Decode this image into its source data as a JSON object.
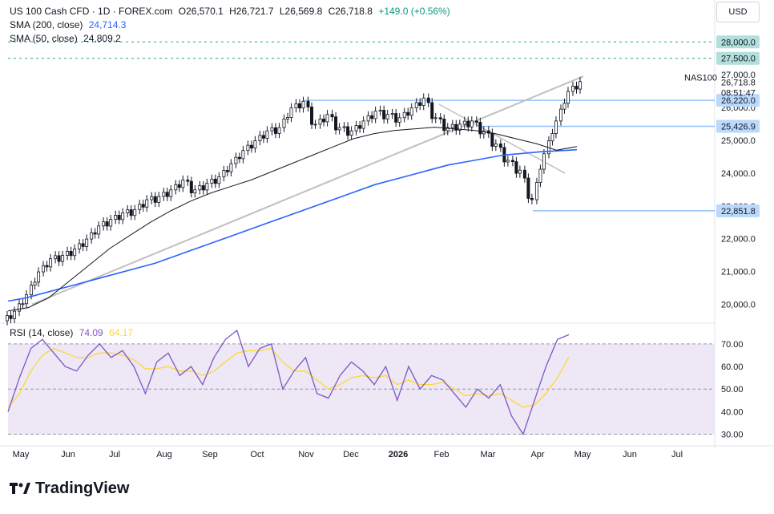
{
  "header": {
    "symbol": "US 100 Cash CFD · 1D · FOREX.com",
    "open": "O26,570.1",
    "high": "H26,721.7",
    "low": "L26,569.8",
    "close": "C26,718.8",
    "change": "+149.0 (+0.56%)",
    "sma200_label": "SMA (200, close)",
    "sma200_value": "24,714.3",
    "sma50_label": "SMA (50, close)",
    "sma50_value": "24,809.2",
    "currency": "USD"
  },
  "rsi_header": {
    "label": "RSI (14, close)",
    "value": "74.09",
    "ma_value": "64.17"
  },
  "logo_text": "TradingView",
  "colors": {
    "up": "#131722",
    "down": "#131722",
    "sma200": "#2962ff",
    "sma50": "#131722",
    "rsi": "#7e57c2",
    "rsi_ma": "#fdd835",
    "rsi_band": "#ede7f6",
    "level_line": "#90bff9",
    "level_label_bg": "#bbd9fb",
    "trendline": "#c0c0c0"
  },
  "chart_data": {
    "type": "candlestick",
    "price_axis": {
      "min": 19500,
      "max": 28300,
      "ticks": [
        "20,000.0",
        "21,000.0",
        "22,000.0",
        "23,000.0",
        "24,000.0",
        "25,000.0",
        "26,000.0",
        "27,000.0"
      ]
    },
    "x_axis_labels": [
      "May",
      "Jun",
      "Jul",
      "Aug",
      "Sep",
      "Oct",
      "Nov",
      "Dec",
      "2026",
      "Feb",
      "Mar",
      "Apr",
      "May",
      "Jun",
      "Jul"
    ],
    "last_price_label": "26,718.8",
    "countdown": "08:51:47",
    "symbol_tag": "NAS100",
    "levels": [
      {
        "label": "28,000.0",
        "price": 28000,
        "style": "dashed"
      },
      {
        "label": "27,500.0",
        "price": 27500,
        "style": "dashed"
      },
      {
        "label": "26,220.0",
        "price": 26220,
        "style": "solid"
      },
      {
        "label": "25,426.9",
        "price": 25426.9,
        "style": "solid"
      },
      {
        "label": "22,851.8",
        "price": 22851.8,
        "style": "solid"
      }
    ],
    "closes_weekly": [
      19700,
      20200,
      20900,
      21300,
      21400,
      21600,
      21900,
      22300,
      22500,
      22700,
      22800,
      23100,
      23200,
      23400,
      23700,
      23400,
      23600,
      23800,
      24200,
      24600,
      24900,
      25200,
      25300,
      25900,
      26100,
      25400,
      25700,
      25300,
      25200,
      25500,
      25800,
      25700,
      25600,
      25900,
      26200,
      25600,
      25300,
      25400,
      25500,
      25200,
      24800,
      24300,
      24000,
      23100,
      24500,
      25500,
      26400,
      26700
    ],
    "sma200_series": [
      20100,
      20200,
      20350,
      20500,
      20650,
      20800,
      20950,
      21100,
      21250,
      21450,
      21650,
      21850,
      22050,
      22250,
      22450,
      22650,
      22850,
      23050,
      23250,
      23450,
      23650,
      23800,
      23950,
      24100,
      24250,
      24350,
      24450,
      24550,
      24600,
      24650,
      24680,
      24714
    ],
    "sma50_series": [
      19800,
      19900,
      20200,
      20700,
      21200,
      21700,
      22100,
      22500,
      22850,
      23150,
      23400,
      23600,
      23800,
      24050,
      24300,
      24550,
      24800,
      25050,
      25200,
      25300,
      25350,
      25400,
      25350,
      25300,
      25200,
      25050,
      24900,
      24700,
      24809
    ],
    "rsi_axis": {
      "min": 27,
      "max": 76,
      "ticks": [
        "70.00",
        "60.00",
        "50.00",
        "40.00",
        "30.00"
      ]
    },
    "rsi_series": [
      40,
      55,
      68,
      72,
      66,
      60,
      58,
      65,
      70,
      64,
      67,
      60,
      48,
      62,
      66,
      56,
      60,
      52,
      64,
      72,
      76,
      60,
      68,
      70,
      50,
      58,
      64,
      48,
      46,
      56,
      62,
      58,
      52,
      60,
      45,
      60,
      50,
      56,
      54,
      48,
      42,
      50,
      46,
      52,
      38,
      30,
      45,
      60,
      72,
      74.09
    ],
    "rsi_ma_series": [
      42,
      48,
      58,
      65,
      68,
      66,
      64,
      64,
      66,
      66,
      65,
      63,
      59,
      59,
      60,
      58,
      58,
      56,
      58,
      62,
      66,
      67,
      67,
      68,
      62,
      58,
      58,
      54,
      50,
      52,
      55,
      56,
      55,
      56,
      52,
      54,
      52,
      52,
      53,
      50,
      47,
      48,
      47,
      48,
      45,
      42,
      43,
      48,
      55,
      64.17
    ]
  }
}
